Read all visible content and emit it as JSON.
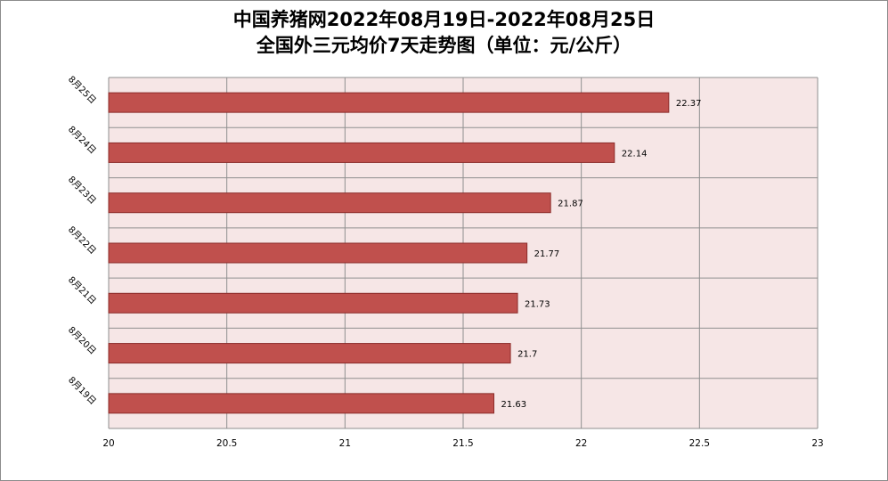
{
  "title_line1": "中国养猪网2022年08月19日-2022年08月25日",
  "title_line2": "全国外三元均价7天走势图（单位：元/公斤）",
  "colors": {
    "bar_fill": "#c0504d",
    "bar_stroke": "#8b2c2a",
    "plot_bg": "#f6e6e6",
    "grid": "#8f8f8f"
  },
  "chart_data": {
    "type": "bar",
    "orientation": "horizontal",
    "categories": [
      "8月19日",
      "8月20日",
      "8月21日",
      "8月22日",
      "8月23日",
      "8月24日",
      "8月25日"
    ],
    "values": [
      21.63,
      21.7,
      21.73,
      21.77,
      21.87,
      22.14,
      22.37
    ],
    "data_labels": [
      "21.63",
      "21.7",
      "21.73",
      "21.77",
      "21.87",
      "22.14",
      "22.37"
    ],
    "xlim": [
      20,
      23
    ],
    "x_ticks": [
      "20",
      "20.5",
      "21",
      "21.5",
      "22",
      "22.5",
      "23"
    ],
    "grid": true,
    "legend": "none"
  }
}
